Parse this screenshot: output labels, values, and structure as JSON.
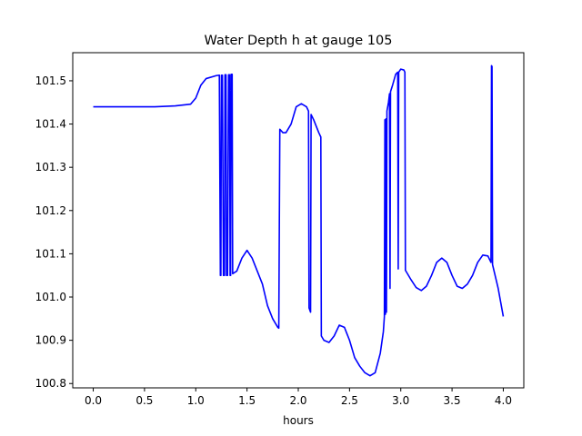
{
  "chart_data": {
    "type": "line",
    "title": "Water Depth h at gauge 105",
    "xlabel": "hours",
    "ylabel": "",
    "xlim": [
      -0.2,
      4.2
    ],
    "ylim": [
      100.79,
      101.565
    ],
    "grid": false,
    "legend": "none",
    "xticks": [
      "0.0",
      "0.5",
      "1.0",
      "1.5",
      "2.0",
      "2.5",
      "3.0",
      "3.5",
      "4.0"
    ],
    "yticks": [
      "100.8",
      "100.9",
      "101.0",
      "101.1",
      "101.2",
      "101.3",
      "101.4",
      "101.5"
    ],
    "series": [
      {
        "name": "",
        "color": "#0000ff",
        "points": [
          [
            0.0,
            101.44
          ],
          [
            0.3,
            101.44
          ],
          [
            0.6,
            101.44
          ],
          [
            0.8,
            101.442
          ],
          [
            0.95,
            101.446
          ],
          [
            1.0,
            101.46
          ],
          [
            1.05,
            101.49
          ],
          [
            1.1,
            101.505
          ],
          [
            1.2,
            101.512
          ],
          [
            1.23,
            101.513
          ],
          [
            1.24,
            101.05
          ],
          [
            1.245,
            101.05
          ],
          [
            1.25,
            101.513
          ],
          [
            1.26,
            101.513
          ],
          [
            1.27,
            101.05
          ],
          [
            1.28,
            101.05
          ],
          [
            1.285,
            101.514
          ],
          [
            1.295,
            101.514
          ],
          [
            1.3,
            101.05
          ],
          [
            1.31,
            101.05
          ],
          [
            1.32,
            101.514
          ],
          [
            1.33,
            101.514
          ],
          [
            1.335,
            101.05
          ],
          [
            1.34,
            101.05
          ],
          [
            1.345,
            101.515
          ],
          [
            1.355,
            101.515
          ],
          [
            1.36,
            101.054
          ],
          [
            1.4,
            101.06
          ],
          [
            1.45,
            101.09
          ],
          [
            1.5,
            101.108
          ],
          [
            1.55,
            101.09
          ],
          [
            1.6,
            101.06
          ],
          [
            1.65,
            101.03
          ],
          [
            1.7,
            100.98
          ],
          [
            1.75,
            100.95
          ],
          [
            1.8,
            100.93
          ],
          [
            1.81,
            100.928
          ],
          [
            1.82,
            101.388
          ],
          [
            1.85,
            101.38
          ],
          [
            1.88,
            101.38
          ],
          [
            1.93,
            101.4
          ],
          [
            1.98,
            101.44
          ],
          [
            2.03,
            101.447
          ],
          [
            2.08,
            101.44
          ],
          [
            2.1,
            101.43
          ],
          [
            2.105,
            100.975
          ],
          [
            2.12,
            100.965
          ],
          [
            2.125,
            101.422
          ],
          [
            2.15,
            101.41
          ],
          [
            2.2,
            101.38
          ],
          [
            2.22,
            101.37
          ],
          [
            2.225,
            100.91
          ],
          [
            2.25,
            100.9
          ],
          [
            2.3,
            100.895
          ],
          [
            2.35,
            100.91
          ],
          [
            2.4,
            100.935
          ],
          [
            2.45,
            100.93
          ],
          [
            2.5,
            100.9
          ],
          [
            2.55,
            100.86
          ],
          [
            2.6,
            100.84
          ],
          [
            2.65,
            100.825
          ],
          [
            2.7,
            100.818
          ],
          [
            2.75,
            100.825
          ],
          [
            2.8,
            100.87
          ],
          [
            2.83,
            100.92
          ],
          [
            2.84,
            100.955
          ],
          [
            2.845,
            101.41
          ],
          [
            2.85,
            100.96
          ],
          [
            2.855,
            101.412
          ],
          [
            2.86,
            100.965
          ],
          [
            2.865,
            101.43
          ],
          [
            2.88,
            101.45
          ],
          [
            2.89,
            101.47
          ],
          [
            2.895,
            101.02
          ],
          [
            2.9,
            101.475
          ],
          [
            2.92,
            101.49
          ],
          [
            2.95,
            101.515
          ],
          [
            2.97,
            101.52
          ],
          [
            2.975,
            101.065
          ],
          [
            2.98,
            101.52
          ],
          [
            3.0,
            101.527
          ],
          [
            3.03,
            101.525
          ],
          [
            3.04,
            101.52
          ],
          [
            3.045,
            101.062
          ],
          [
            3.1,
            101.04
          ],
          [
            3.15,
            101.022
          ],
          [
            3.2,
            101.015
          ],
          [
            3.25,
            101.025
          ],
          [
            3.3,
            101.05
          ],
          [
            3.35,
            101.08
          ],
          [
            3.4,
            101.09
          ],
          [
            3.45,
            101.08
          ],
          [
            3.5,
            101.05
          ],
          [
            3.55,
            101.025
          ],
          [
            3.6,
            101.02
          ],
          [
            3.65,
            101.03
          ],
          [
            3.7,
            101.05
          ],
          [
            3.75,
            101.08
          ],
          [
            3.8,
            101.097
          ],
          [
            3.85,
            101.095
          ],
          [
            3.88,
            101.08
          ],
          [
            3.885,
            101.535
          ],
          [
            3.89,
            101.533
          ],
          [
            3.895,
            101.075
          ],
          [
            3.9,
            101.07
          ],
          [
            3.95,
            101.02
          ],
          [
            4.0,
            100.955
          ]
        ]
      }
    ]
  }
}
